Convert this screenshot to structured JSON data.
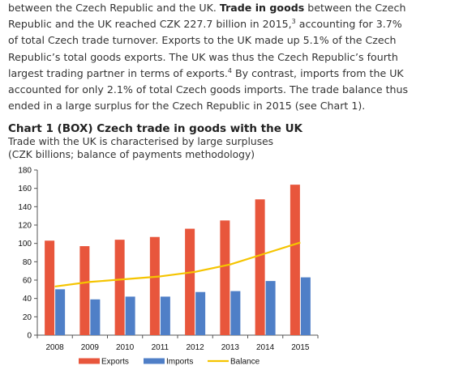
{
  "text": {
    "line1_a": "between the Czech Republic and the UK. ",
    "line1_bold": "Trade in goods",
    "line1_b": " between the Czech",
    "line2_a": "Republic and the UK reached CZK 227.7 billion in 2015,",
    "line2_sup": "3",
    "line2_b": " accounting for 3.7%",
    "line3": "of total Czech trade turnover. Exports to the UK made up 5.1% of the Czech",
    "line4": "Republic’s total goods exports. The UK was thus the Czech Republic’s fourth",
    "line5_a": "largest trading partner in terms of exports.",
    "line5_sup": "4",
    "line5_b": " By contrast, imports from the UK",
    "line6": "accounted for only 2.1% of total Czech goods imports. The trade balance thus",
    "line7": "ended in a large surplus for the Czech Republic in 2015 (see Chart 1)."
  },
  "chart_data": {
    "type": "bar",
    "title": "Chart 1 (BOX) Czech trade in goods with the UK",
    "subtitle_line1": "Trade with the UK is characterised by large surpluses",
    "subtitle_line2": "(CZK billions; balance of payments methodology)",
    "categories": [
      "2008",
      "2009",
      "2010",
      "2011",
      "2012",
      "2013",
      "2014",
      "2015"
    ],
    "series": [
      {
        "name": "Exports",
        "kind": "bar",
        "color": "#e8563c",
        "values": [
          103,
          97,
          104,
          107,
          116,
          125,
          148,
          164
        ]
      },
      {
        "name": "Imports",
        "kind": "bar",
        "color": "#4f7fc7",
        "values": [
          50,
          39,
          42,
          42,
          47,
          48,
          59,
          63
        ]
      },
      {
        "name": "Balance",
        "kind": "line",
        "color": "#f5c400",
        "values": [
          53,
          58,
          61,
          64,
          69,
          77,
          89,
          101
        ]
      }
    ],
    "yticks": [
      "0",
      "20",
      "40",
      "60",
      "80",
      "100",
      "120",
      "140",
      "160",
      "180"
    ],
    "ylim": [
      0,
      180
    ],
    "grid": false,
    "legend": "bottom"
  }
}
